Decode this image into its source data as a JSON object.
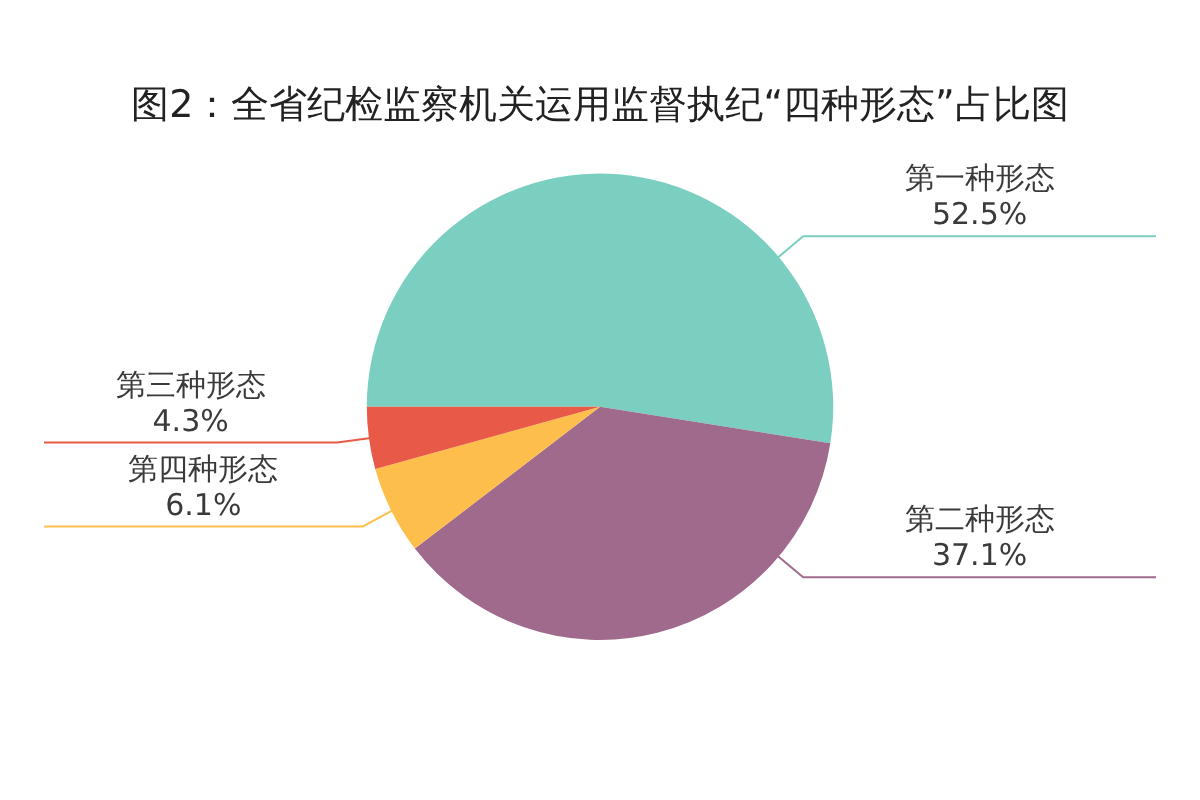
{
  "chart_data": {
    "type": "pie",
    "title": "图2：全省纪检监察机关运用监督执纪“四种形态”占比图",
    "categories": [
      "第一种形态",
      "第二种形态",
      "第四种形态",
      "第三种形态"
    ],
    "values": [
      52.5,
      37.1,
      6.1,
      4.3
    ],
    "colors": [
      "#7acfc0",
      "#a06a8c",
      "#fdbe4b",
      "#e85a47"
    ],
    "value_labels": [
      "52.5%",
      "37.1%",
      "6.1%",
      "4.3%"
    ],
    "legend": false
  }
}
